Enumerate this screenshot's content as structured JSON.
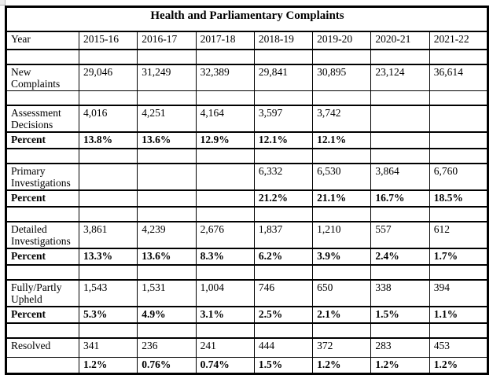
{
  "title": "Health and Parliamentary Complaints",
  "table": {
    "header": {
      "label": "Year",
      "years": [
        "2015-16",
        "2016-17",
        "2017-18",
        "2018-19",
        "2019-20",
        "2020-21",
        "2021-22"
      ]
    },
    "rows": [
      {
        "type": "spacer",
        "label": "",
        "values": [
          "",
          "",
          "",
          "",
          "",
          "",
          ""
        ]
      },
      {
        "type": "data",
        "label": "New Complaints",
        "values": [
          "29,046",
          "31,249",
          "32,389",
          "29,841",
          "30,895",
          "23,124",
          "36,614"
        ]
      },
      {
        "type": "spacer",
        "label": "",
        "values": [
          "",
          "",
          "",
          "",
          "",
          "",
          ""
        ]
      },
      {
        "type": "data",
        "label": "Assessment Decisions",
        "values": [
          "4,016",
          "4,251",
          "4,164",
          "3,597",
          "3,742",
          "",
          ""
        ]
      },
      {
        "type": "percent",
        "label": "Percent",
        "values": [
          "13.8%",
          "13.6%",
          "12.9%",
          "12.1%",
          "12.1%",
          "",
          ""
        ]
      },
      {
        "type": "spacer",
        "label": "",
        "values": [
          "",
          "",
          "",
          "",
          "",
          "",
          ""
        ]
      },
      {
        "type": "data",
        "label": "Primary Investigations",
        "values": [
          "",
          "",
          "",
          "6,332",
          "6,530",
          "3,864",
          "6,760"
        ]
      },
      {
        "type": "percent",
        "label": "Percent",
        "values": [
          "",
          "",
          "",
          "21.2%",
          "21.1%",
          "16.7%",
          "18.5%"
        ]
      },
      {
        "type": "spacer",
        "label": "",
        "values": [
          "",
          "",
          "",
          "",
          "",
          "",
          ""
        ]
      },
      {
        "type": "data",
        "label": "Detailed Investigations",
        "values": [
          "3,861",
          "4,239",
          "2,676",
          "1,837",
          "1,210",
          "557",
          "612"
        ]
      },
      {
        "type": "percent",
        "label": "Percent",
        "values": [
          "13.3%",
          "13.6%",
          "8.3%",
          "6.2%",
          "3.9%",
          "2.4%",
          "1.7%"
        ]
      },
      {
        "type": "spacer",
        "label": "",
        "values": [
          "",
          "",
          "",
          "",
          "",
          "",
          ""
        ]
      },
      {
        "type": "data",
        "label": "Fully/Partly Upheld",
        "values": [
          "1,543",
          "1,531",
          "1,004",
          "746",
          "650",
          "338",
          "394"
        ]
      },
      {
        "type": "percent",
        "label": "Percent",
        "values": [
          "5.3%",
          "4.9%",
          "3.1%",
          "2.5%",
          "2.1%",
          "1.5%",
          "1.1%"
        ]
      },
      {
        "type": "spacer",
        "label": "",
        "values": [
          "",
          "",
          "",
          "",
          "",
          "",
          ""
        ]
      },
      {
        "type": "data_single",
        "label": "Resolved",
        "values": [
          "341",
          "236",
          "241",
          "444",
          "372",
          "283",
          "453"
        ]
      },
      {
        "type": "percent",
        "label": "",
        "values": [
          "1.2%",
          "0.76%",
          "0.74%",
          "1.5%",
          "1.2%",
          "1.2%",
          "1.2%"
        ]
      }
    ]
  }
}
